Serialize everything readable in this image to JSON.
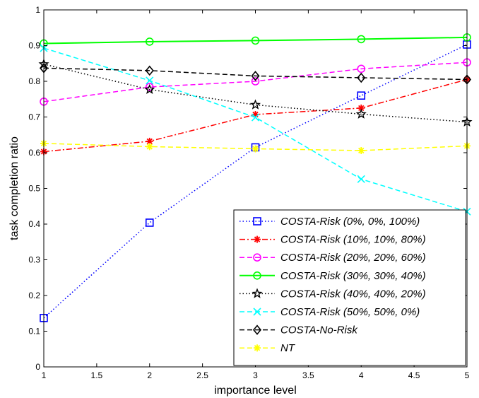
{
  "chart_data": {
    "type": "line",
    "title": "",
    "xlabel": "importance level",
    "ylabel": "task completion ratio",
    "xlim": [
      1,
      5
    ],
    "ylim": [
      0,
      1
    ],
    "x_ticks": [
      "1",
      "1.5",
      "2",
      "2.5",
      "3",
      "3.5",
      "4",
      "4.5",
      "5"
    ],
    "y_ticks": [
      "0",
      "0.1",
      "0.2",
      "0.3",
      "0.4",
      "0.5",
      "0.6",
      "0.7",
      "0.8",
      "0.9",
      "1"
    ],
    "grid": false,
    "legend_position": "bottom-right",
    "x": [
      1,
      2,
      3,
      4,
      5
    ],
    "series": [
      {
        "name": "COSTA-Risk (0%, 0%, 100%)",
        "values": [
          0.137,
          0.404,
          0.615,
          0.76,
          0.903
        ],
        "color": "#0000ff",
        "dash": "dotted",
        "marker": "square"
      },
      {
        "name": "COSTA-Risk (10%, 10%, 80%)",
        "values": [
          0.603,
          0.632,
          0.707,
          0.725,
          0.805
        ],
        "color": "#ff0000",
        "dash": "dashdot",
        "marker": "asterisk"
      },
      {
        "name": "COSTA-Risk (20%, 20%, 60%)",
        "values": [
          0.743,
          0.784,
          0.8,
          0.835,
          0.853
        ],
        "color": "#ff00ff",
        "dash": "dashed",
        "marker": "circle"
      },
      {
        "name": "COSTA-Risk (30%, 30%, 40%)",
        "values": [
          0.906,
          0.911,
          0.914,
          0.918,
          0.923
        ],
        "color": "#00ff00",
        "dash": "solid",
        "marker": "circle"
      },
      {
        "name": "COSTA-Risk (40%, 40%, 20%)",
        "values": [
          0.848,
          0.777,
          0.734,
          0.708,
          0.686
        ],
        "color": "#000000",
        "dash": "dotted",
        "marker": "star"
      },
      {
        "name": "COSTA-Risk (50%, 50%, 0%)",
        "values": [
          0.893,
          0.802,
          0.699,
          0.526,
          0.435
        ],
        "color": "#00ffff",
        "dash": "dashed",
        "marker": "x"
      },
      {
        "name": "COSTA-No-Risk",
        "values": [
          0.837,
          0.83,
          0.815,
          0.81,
          0.805
        ],
        "color": "#000000",
        "dash": "dashed",
        "marker": "diamond"
      },
      {
        "name": "NT",
        "values": [
          0.626,
          0.617,
          0.611,
          0.606,
          0.619
        ],
        "color": "#ffff00",
        "dash": "dashed",
        "marker": "asterisk"
      }
    ]
  }
}
